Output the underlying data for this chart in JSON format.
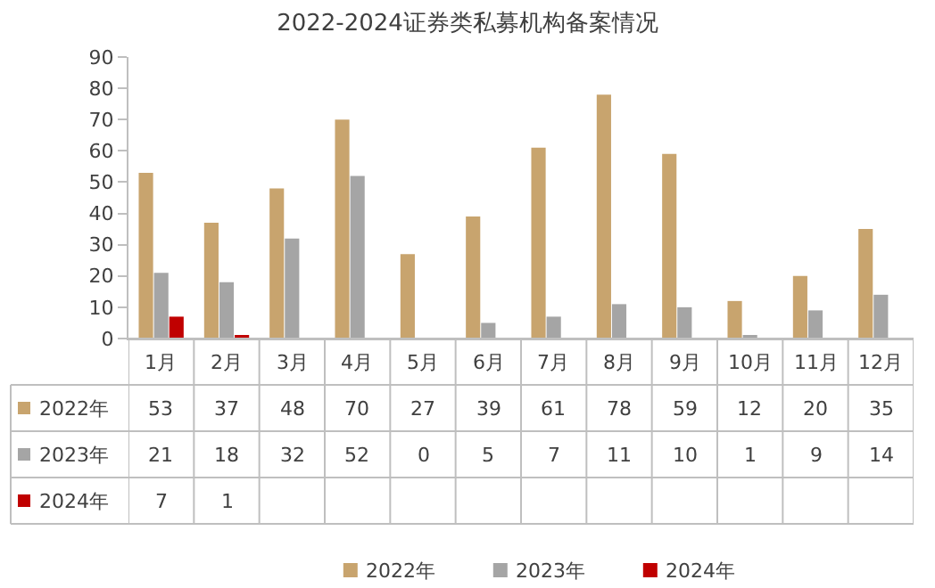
{
  "chart_data": {
    "type": "bar",
    "title": "2022-2024证券类私募机构备案情况",
    "categories": [
      "1月",
      "2月",
      "3月",
      "4月",
      "5月",
      "6月",
      "7月",
      "8月",
      "9月",
      "10月",
      "11月",
      "12月"
    ],
    "series": [
      {
        "name": "2022年",
        "color": "#c8a46e",
        "values": [
          53,
          37,
          48,
          70,
          27,
          39,
          61,
          78,
          59,
          12,
          20,
          35
        ]
      },
      {
        "name": "2023年",
        "color": "#a5a5a5",
        "values": [
          21,
          18,
          32,
          52,
          0,
          5,
          7,
          11,
          10,
          1,
          9,
          14
        ]
      },
      {
        "name": "2024年",
        "color": "#c00000",
        "values": [
          7,
          1,
          null,
          null,
          null,
          null,
          null,
          null,
          null,
          null,
          null,
          null
        ]
      }
    ],
    "ylim": [
      0,
      90
    ],
    "yticks": [
      0,
      10,
      20,
      30,
      40,
      50,
      60,
      70,
      80,
      90
    ],
    "grid": false,
    "legend": "bottom",
    "data_labels": true
  }
}
